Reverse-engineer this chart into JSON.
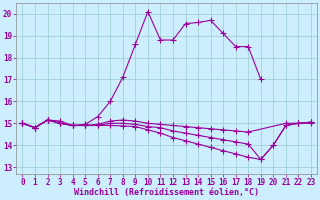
{
  "xlabel": "Windchill (Refroidissement éolien,°C)",
  "x_hours": [
    0,
    1,
    2,
    3,
    4,
    5,
    6,
    7,
    8,
    9,
    10,
    11,
    12,
    13,
    14,
    15,
    16,
    17,
    18,
    19,
    20,
    21,
    22,
    23
  ],
  "series1": [
    15.0,
    14.8,
    15.15,
    15.1,
    14.9,
    14.95,
    15.3,
    16.0,
    17.1,
    18.6,
    20.1,
    18.8,
    18.8,
    19.55,
    19.6,
    19.7,
    19.1,
    18.5,
    18.5,
    17.0,
    null,
    null,
    null,
    null
  ],
  "series2": [
    15.0,
    14.8,
    15.15,
    15.0,
    14.9,
    14.9,
    14.95,
    15.1,
    15.15,
    15.1,
    15.0,
    14.95,
    14.9,
    14.85,
    14.8,
    14.75,
    14.7,
    14.65,
    14.6,
    null,
    null,
    15.0,
    15.0,
    15.0
  ],
  "series3": [
    15.0,
    14.8,
    15.15,
    15.0,
    14.9,
    14.9,
    14.9,
    15.0,
    15.0,
    14.95,
    14.85,
    14.8,
    14.65,
    14.55,
    14.45,
    14.35,
    14.25,
    14.15,
    14.05,
    13.35,
    14.0,
    14.9,
    15.0,
    15.05
  ],
  "series4": [
    15.0,
    14.8,
    15.15,
    15.0,
    14.9,
    14.9,
    14.9,
    14.9,
    14.88,
    14.85,
    14.7,
    14.55,
    14.35,
    14.2,
    14.05,
    13.9,
    13.75,
    13.6,
    13.45,
    13.35,
    14.0,
    14.9,
    15.0,
    15.05
  ],
  "line_color": "#990099",
  "bg_color": "#cceeff",
  "grid_color": "#99cccc",
  "ylim_min": 12.7,
  "ylim_max": 20.5,
  "yticks": [
    13,
    14,
    15,
    16,
    17,
    18,
    19,
    20
  ],
  "marker": "+",
  "marker_size": 4,
  "linewidth": 0.8,
  "tick_fontsize": 5.5,
  "xlabel_fontsize": 6.0
}
